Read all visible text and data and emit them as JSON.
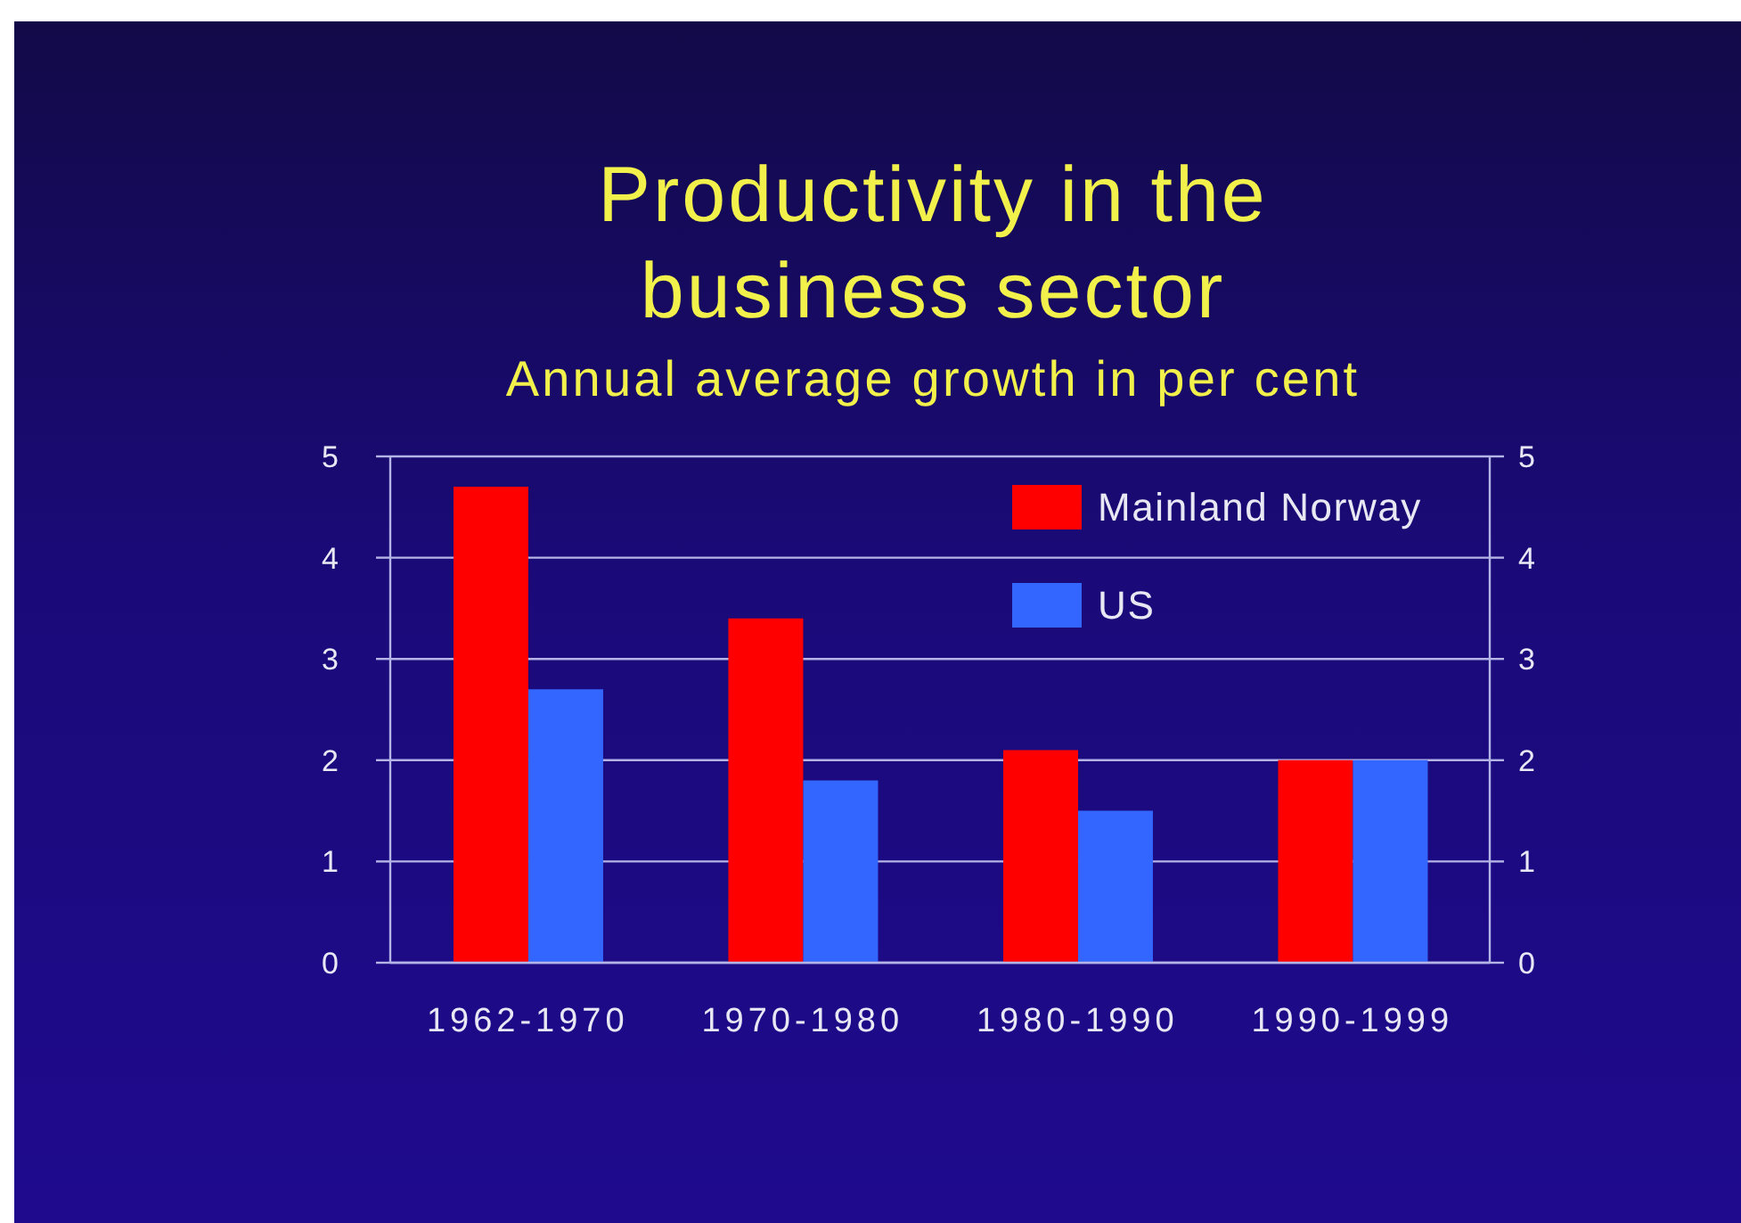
{
  "chart_data": {
    "type": "bar",
    "title": "Productivity in the business sector",
    "subtitle": "Annual average growth in per cent",
    "categories": [
      "1962-1970",
      "1970-1980",
      "1980-1990",
      "1990-1999"
    ],
    "series": [
      {
        "name": "Mainland Norway",
        "color": "#ff0000",
        "values": [
          4.7,
          3.4,
          2.1,
          2.0
        ]
      },
      {
        "name": "US",
        "color": "#3366ff",
        "values": [
          2.7,
          1.8,
          1.5,
          2.0
        ]
      }
    ],
    "ylim": [
      0,
      5
    ],
    "yticks": [
      0,
      1,
      2,
      3,
      4,
      5
    ],
    "y2lim": [
      0,
      5
    ],
    "y2ticks": [
      0,
      1,
      2,
      3,
      4,
      5
    ],
    "grid": "y",
    "legend": "top right"
  }
}
